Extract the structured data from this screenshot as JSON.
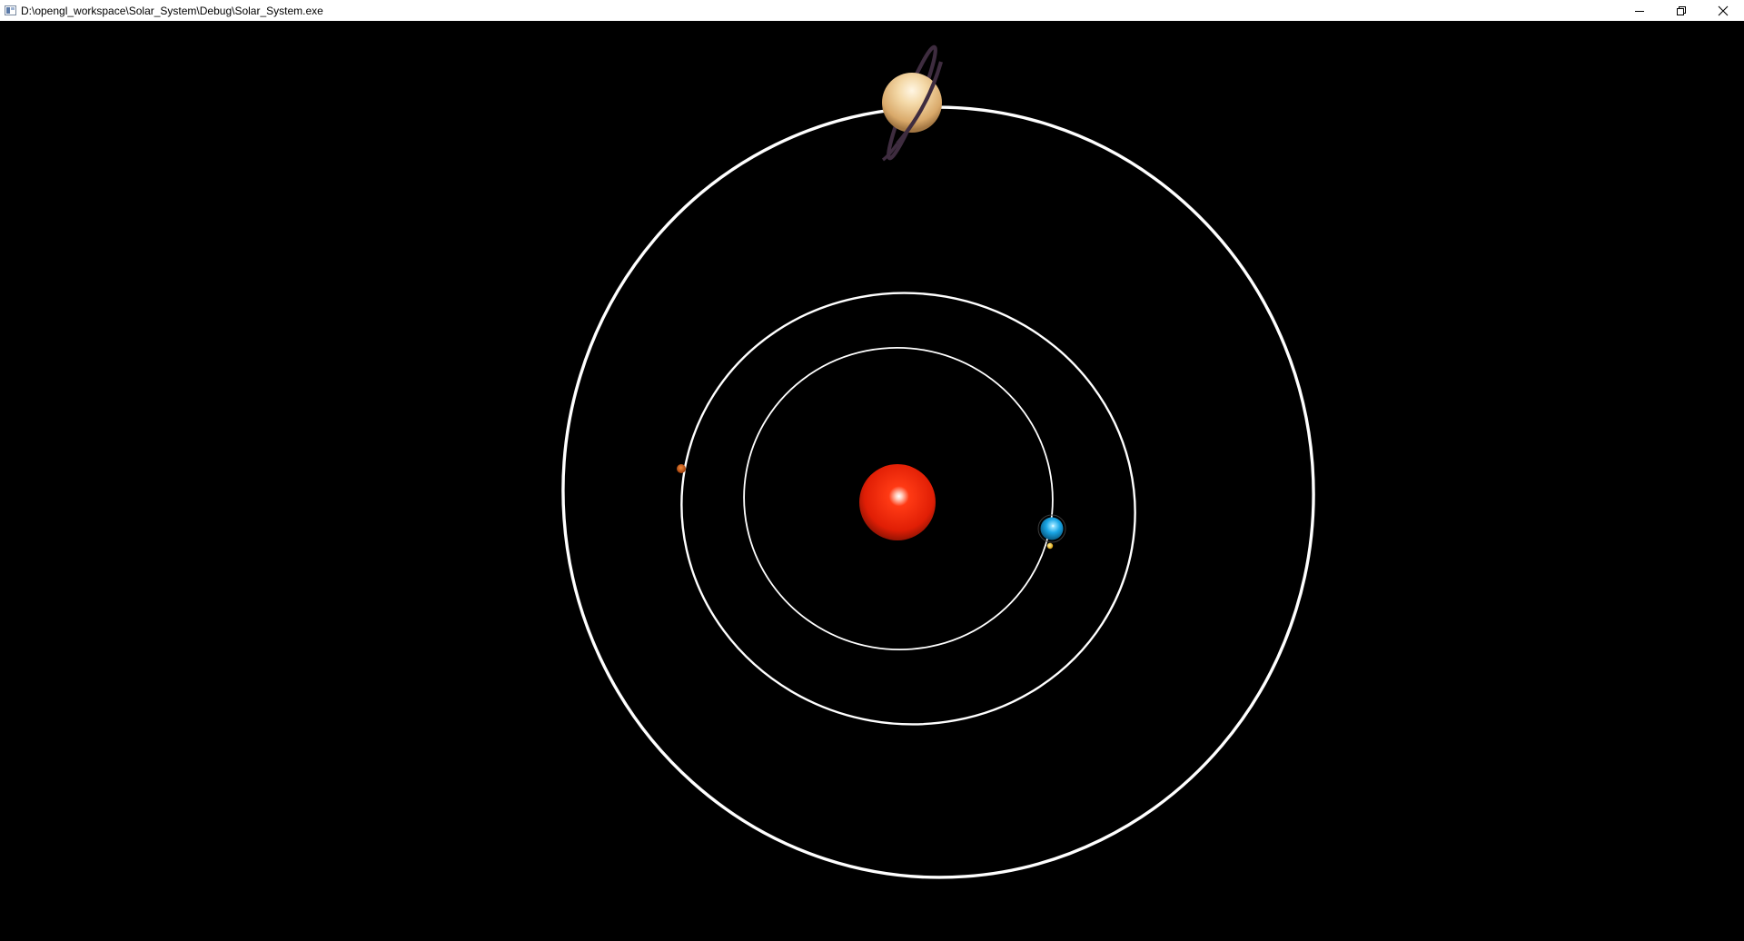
{
  "window": {
    "title": "D:\\opengl_workspace\\Solar_System\\Debug\\Solar_System.exe",
    "icon": "application-icon",
    "controls": [
      "minimize-icon",
      "restore-icon",
      "close-icon"
    ]
  },
  "scene": {
    "background": "#000000",
    "orbit_color": "#ffffff",
    "bodies": [
      {
        "name": "sun",
        "color": "#e82a0c"
      },
      {
        "name": "blue-planet",
        "color": "#1aa6e6"
      },
      {
        "name": "moon",
        "color": "#f2c21c"
      },
      {
        "name": "small-orange-planet",
        "color": "#c5520e"
      },
      {
        "name": "ringed-planet",
        "color": "#f0d3a0",
        "ring_color": "#3e2c3f"
      }
    ]
  }
}
